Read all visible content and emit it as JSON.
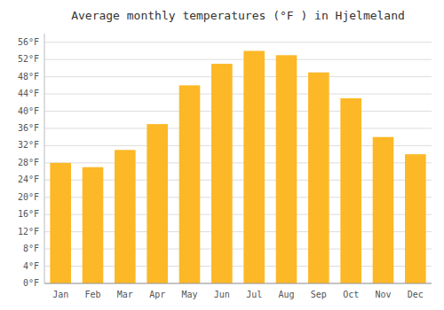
{
  "chart_data": {
    "type": "bar",
    "title": "Average monthly temperatures (°F ) in Hjelmeland",
    "categories": [
      "Jan",
      "Feb",
      "Mar",
      "Apr",
      "May",
      "Jun",
      "Jul",
      "Aug",
      "Sep",
      "Oct",
      "Nov",
      "Dec"
    ],
    "values": [
      28,
      27,
      31,
      37,
      46,
      51,
      54,
      53,
      49,
      43,
      34,
      30
    ],
    "color": "#FDB827",
    "ylim": [
      0,
      58
    ],
    "yticks": [
      {
        "value": 0,
        "label": "0°F"
      },
      {
        "value": 4,
        "label": "4°F"
      },
      {
        "value": 8,
        "label": "8°F"
      },
      {
        "value": 12,
        "label": "12°F"
      },
      {
        "value": 16,
        "label": "16°F"
      },
      {
        "value": 20,
        "label": "20°F"
      },
      {
        "value": 24,
        "label": "24°F"
      },
      {
        "value": 28,
        "label": "28°F"
      },
      {
        "value": 32,
        "label": "32°F"
      },
      {
        "value": 36,
        "label": "36°F"
      },
      {
        "value": 40,
        "label": "40°F"
      },
      {
        "value": 44,
        "label": "44°F"
      },
      {
        "value": 48,
        "label": "48°F"
      },
      {
        "value": 52,
        "label": "52°F"
      },
      {
        "value": 56,
        "label": "56°F"
      }
    ],
    "grid": true
  }
}
